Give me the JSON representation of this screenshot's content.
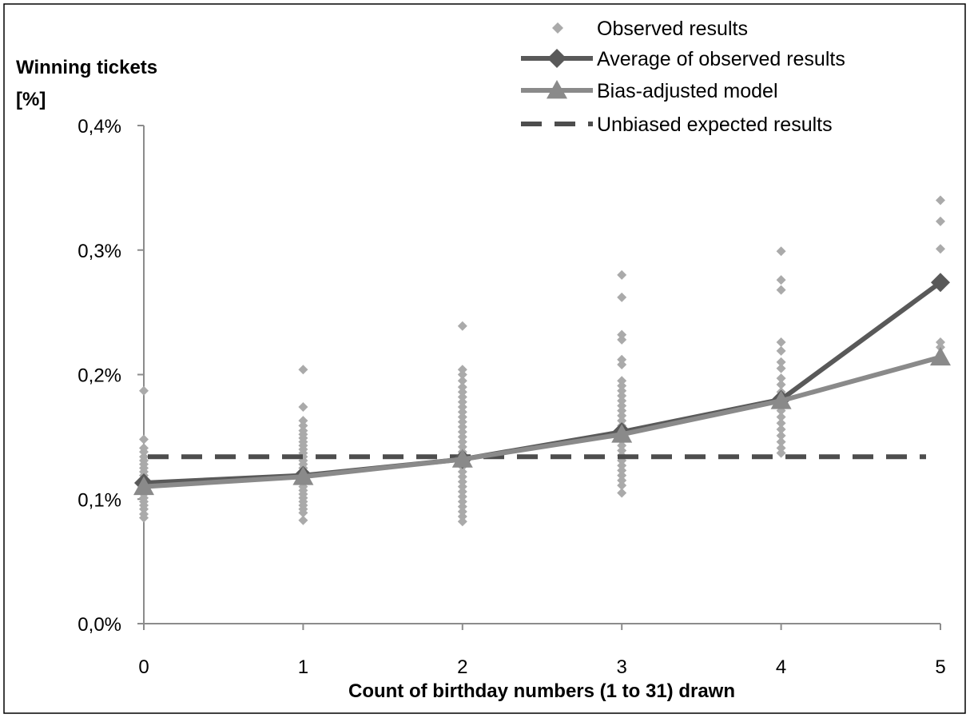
{
  "chart_data": {
    "type": "scatter",
    "ylabel_line1": "Winning tickets",
    "ylabel_line2": "[%]",
    "xlabel": "Count of birthday numbers (1 to 31) drawn",
    "x_ticks": [
      "0",
      "1",
      "2",
      "3",
      "4",
      "5"
    ],
    "y_ticks": [
      "0,0%",
      "0,1%",
      "0,2%",
      "0,3%",
      "0,4%"
    ],
    "xlim": [
      0,
      5
    ],
    "ylim": [
      0,
      0.4
    ],
    "grid": false,
    "legend_position": "top-right",
    "legend": [
      {
        "label": "Observed results",
        "style": "diamond-marker"
      },
      {
        "label": "Average of observed results",
        "style": "line-diamond"
      },
      {
        "label": "Bias-adjusted model",
        "style": "line-triangle"
      },
      {
        "label": "Unbiased expected results",
        "style": "dashed-line"
      }
    ],
    "series": [
      {
        "name": "Observed results",
        "kind": "scatter",
        "color": "#aaaaaa",
        "points": {
          "0": [
            0.187,
            0.148,
            0.141,
            0.138,
            0.134,
            0.131,
            0.128,
            0.125,
            0.122,
            0.119,
            0.116,
            0.113,
            0.11,
            0.107,
            0.104,
            0.101,
            0.098,
            0.095,
            0.092,
            0.088,
            0.085
          ],
          "1": [
            0.204,
            0.174,
            0.163,
            0.159,
            0.155,
            0.152,
            0.149,
            0.146,
            0.143,
            0.14,
            0.137,
            0.134,
            0.131,
            0.128,
            0.125,
            0.122,
            0.119,
            0.116,
            0.113,
            0.11,
            0.107,
            0.104,
            0.101,
            0.098,
            0.095,
            0.092,
            0.089,
            0.083
          ],
          "2": [
            0.239,
            0.204,
            0.2,
            0.195,
            0.19,
            0.186,
            0.182,
            0.178,
            0.174,
            0.17,
            0.166,
            0.162,
            0.158,
            0.154,
            0.15,
            0.146,
            0.142,
            0.138,
            0.134,
            0.13,
            0.126,
            0.122,
            0.118,
            0.114,
            0.11,
            0.106,
            0.102,
            0.098,
            0.094,
            0.09,
            0.086,
            0.082
          ],
          "3": [
            0.28,
            0.262,
            0.232,
            0.228,
            0.212,
            0.208,
            0.195,
            0.191,
            0.187,
            0.183,
            0.179,
            0.175,
            0.171,
            0.167,
            0.163,
            0.159,
            0.155,
            0.151,
            0.147,
            0.143,
            0.139,
            0.135,
            0.131,
            0.127,
            0.123,
            0.119,
            0.115,
            0.111,
            0.105
          ],
          "4": [
            0.299,
            0.276,
            0.268,
            0.226,
            0.219,
            0.21,
            0.205,
            0.197,
            0.192,
            0.186,
            0.181,
            0.176,
            0.171,
            0.166,
            0.161,
            0.156,
            0.151,
            0.146,
            0.141,
            0.137
          ],
          "5": [
            0.34,
            0.323,
            0.301,
            0.226,
            0.222
          ]
        }
      },
      {
        "name": "Average of observed results",
        "kind": "line",
        "marker": "diamond",
        "color": "#595959",
        "x": [
          0,
          1,
          2,
          3,
          4,
          5
        ],
        "y": [
          0.113,
          0.119,
          0.132,
          0.154,
          0.18,
          0.274
        ]
      },
      {
        "name": "Bias-adjusted model",
        "kind": "line",
        "marker": "triangle",
        "color": "#8a8a8a",
        "x": [
          0,
          1,
          2,
          3,
          4,
          5
        ],
        "y": [
          0.11,
          0.118,
          0.132,
          0.152,
          0.179,
          0.214
        ]
      },
      {
        "name": "Unbiased expected results",
        "kind": "dashed",
        "color": "#4d4d4d",
        "x": [
          0,
          5
        ],
        "y": [
          0.134,
          0.134
        ]
      }
    ]
  }
}
